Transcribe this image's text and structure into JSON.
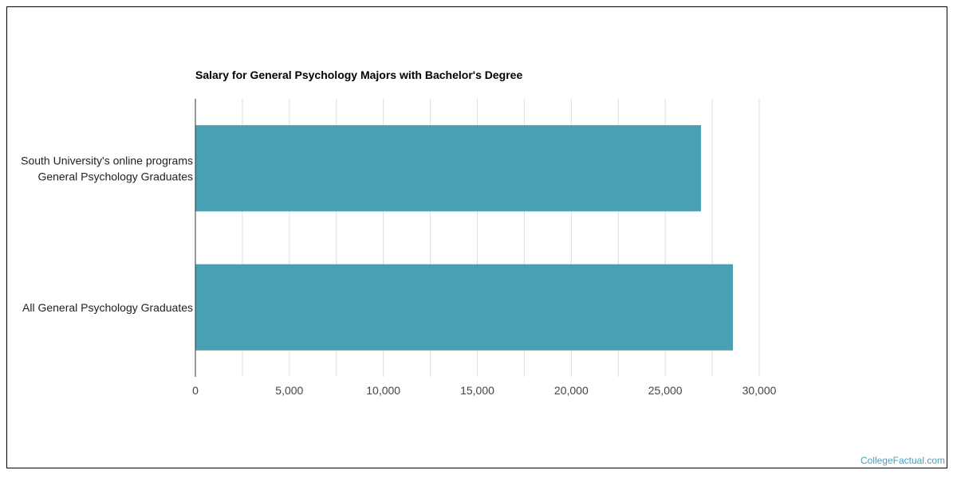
{
  "chart_data": {
    "type": "bar",
    "orientation": "horizontal",
    "title": "Salary for General Psychology Majors with Bachelor's Degree",
    "categories": [
      [
        "South University's online programs",
        "General Psychology Graduates"
      ],
      [
        "All General Psychology Graduates"
      ]
    ],
    "values": [
      26900,
      28600
    ],
    "xlim": [
      0,
      30000
    ],
    "xticks": [
      0,
      5000,
      10000,
      15000,
      20000,
      25000,
      30000
    ],
    "xtick_labels": [
      "0",
      "5,000",
      "10,000",
      "15,000",
      "20,000",
      "25,000",
      "30,000"
    ],
    "grid": true,
    "bar_color": "#4aa0b3",
    "grid_color": "#dddddd",
    "axis_color": "#333333"
  },
  "watermark": "CollegeFactual.com"
}
